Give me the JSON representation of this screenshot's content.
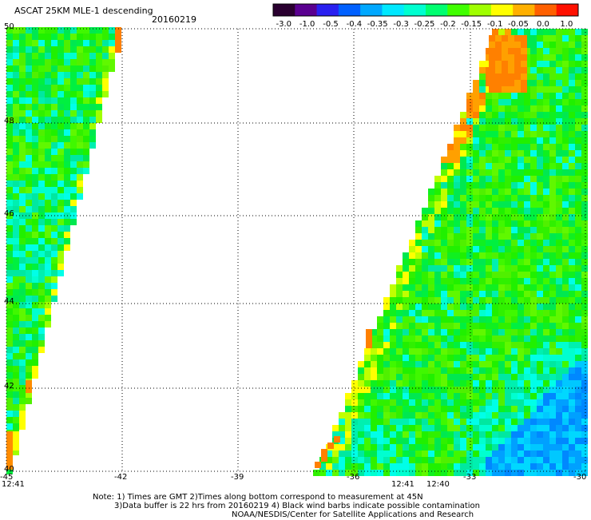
{
  "header": {
    "title": "ASCAT 25KM MLE-1 descending",
    "date": "20160219"
  },
  "colorbar": {
    "labels": [
      "-3.0",
      "-1.0",
      "-0.5",
      "-0.4",
      "-0.35",
      "-0.3",
      "-0.25",
      "-0.2",
      "-0.15",
      "-0.1",
      "-0.05",
      "0.0",
      "1.0"
    ],
    "colors": [
      "#2a0030",
      "#5a0090",
      "#2a20f0",
      "#0060ff",
      "#00a8ff",
      "#00e8ff",
      "#00ffd0",
      "#00ff70",
      "#40ff00",
      "#a0ff00",
      "#ffff00",
      "#ffb000",
      "#ff6000",
      "#ff1000"
    ]
  },
  "map": {
    "lat_labels": [
      "50",
      "48",
      "46",
      "44",
      "42",
      "40"
    ],
    "lon_labels": [
      "-45",
      "-42",
      "-39",
      "-36",
      "-33",
      "-30"
    ],
    "time_labels": {
      "left": "12:41",
      "mid_a": "12:41",
      "mid_b": "12:40"
    }
  },
  "notes": {
    "line1": "Note: 1) Times are GMT 2)Times along bottom correspond to measurement at 45N",
    "line2": "3)Data buffer is 22 hrs from 20160219 4) Black wind barbs indicate possible contamination",
    "line3": "NOAA/NESDIS/Center for Satellite Applications and Research"
  }
}
